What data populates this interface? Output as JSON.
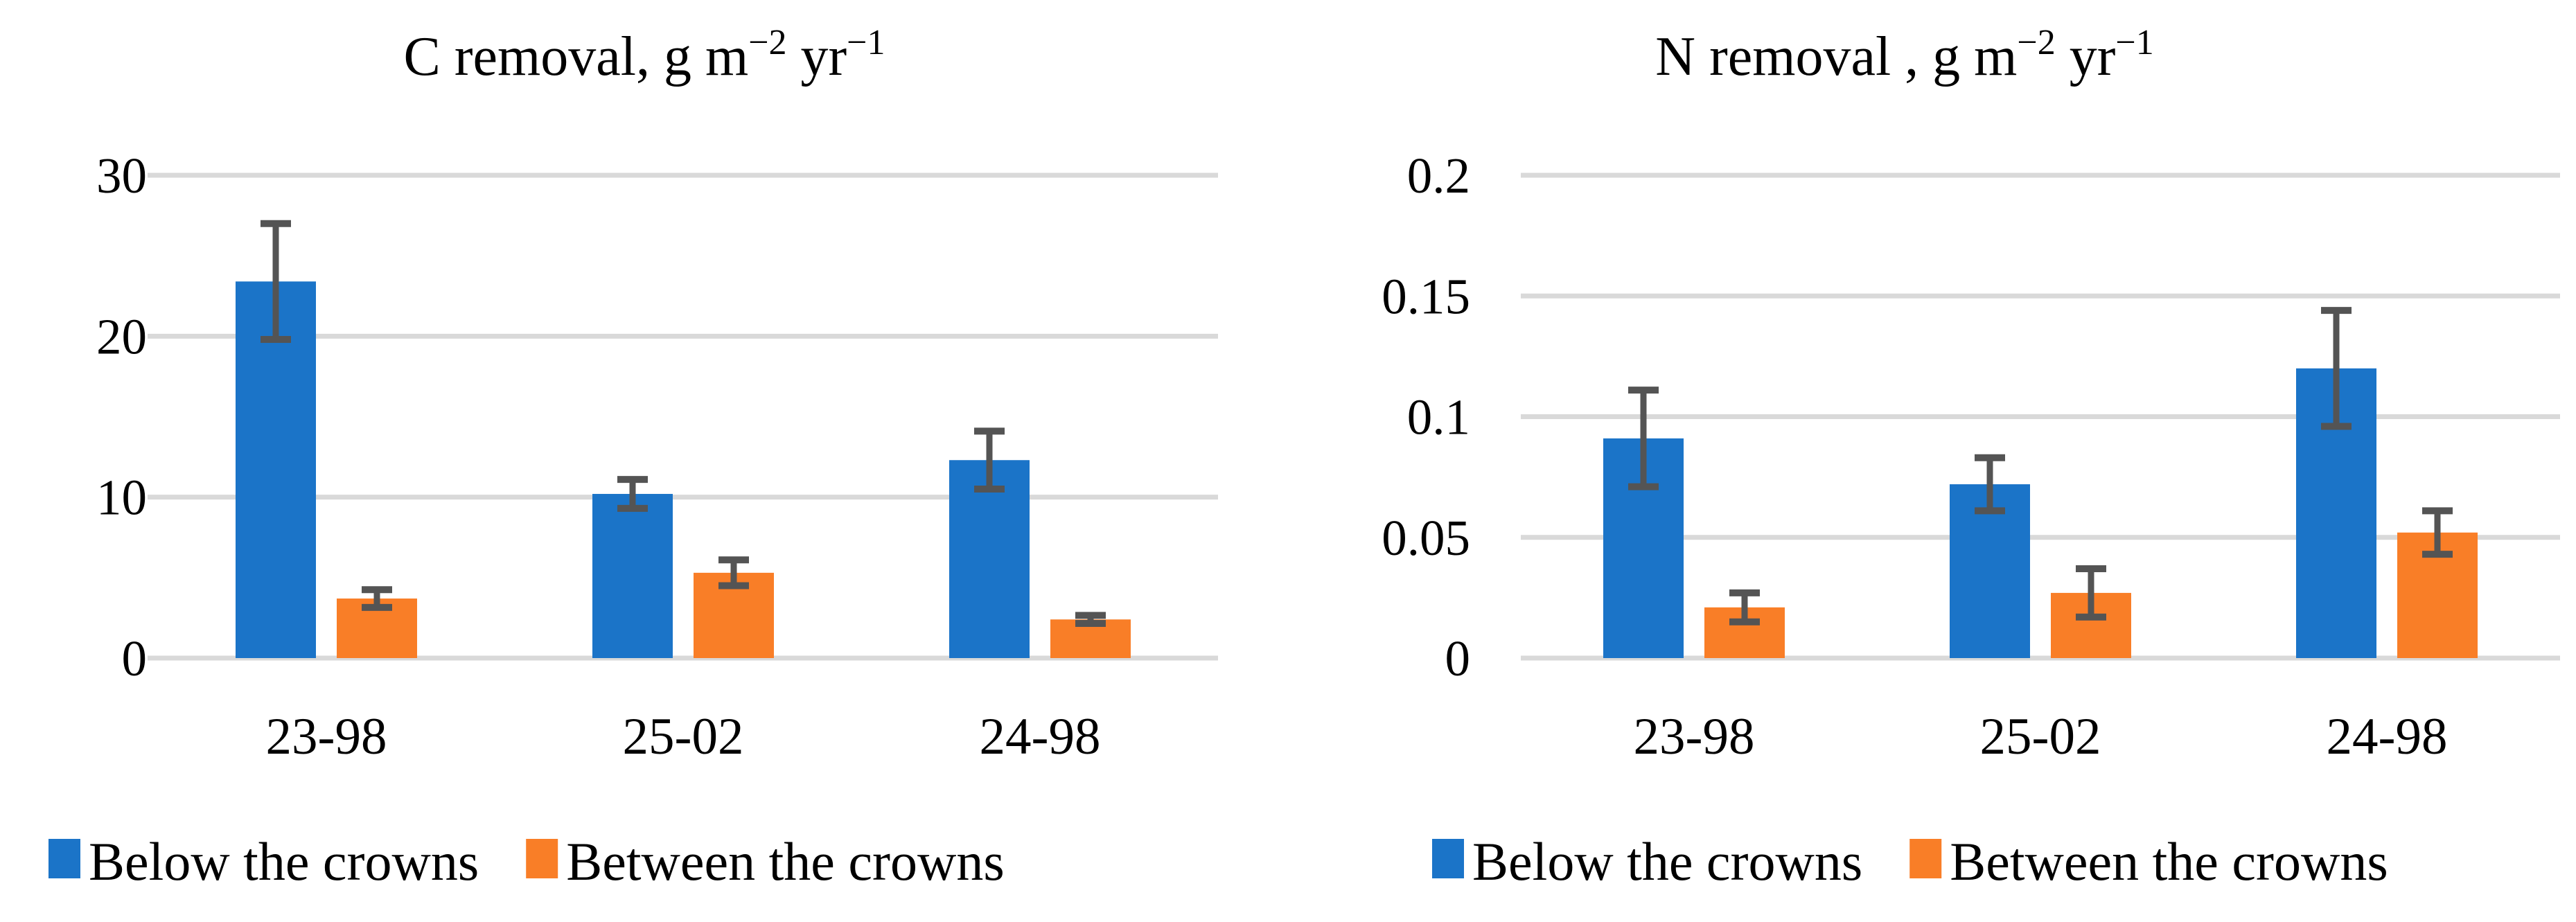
{
  "figure": {
    "background": "#ffffff",
    "series_colors": {
      "below": "#1B74C8",
      "between": "#F97E27"
    },
    "error_bar_color": "#545454",
    "gridline_color": "#D9D9D9",
    "text_color": "#000000",
    "legend": {
      "items": [
        {
          "label": "Below the crowns",
          "color_key": "below",
          "marker": "square"
        },
        {
          "label": "Between the crowns",
          "color_key": "between",
          "marker": "square"
        }
      ]
    }
  },
  "chart_data": [
    {
      "type": "bar",
      "title": "C removal, g m⁻² yr⁻¹",
      "title_parts": [
        {
          "t": "C removal, g m"
        },
        {
          "t": "−2",
          "sup": true
        },
        {
          "t": " yr"
        },
        {
          "t": "−1",
          "sup": true
        }
      ],
      "categories": [
        "23-98",
        "25-02",
        "24-98"
      ],
      "series": [
        {
          "name": "Below the crowns",
          "color_key": "below",
          "values": [
            23.4,
            10.2,
            12.3
          ],
          "errors": [
            3.6,
            0.9,
            1.8
          ]
        },
        {
          "name": "Between the crowns",
          "color_key": "between",
          "values": [
            3.7,
            5.3,
            2.4
          ],
          "errors": [
            0.55,
            0.8,
            0.25
          ]
        }
      ],
      "ylim": [
        0,
        30
      ],
      "yticks": [
        0,
        10,
        20,
        30
      ],
      "ytick_labels": [
        "0",
        "10",
        "20",
        "30"
      ],
      "grid": true,
      "legend_position": "bottom-left"
    },
    {
      "type": "bar",
      "title": "N removal , g m⁻² yr⁻¹",
      "title_parts": [
        {
          "t": "N removal , g m"
        },
        {
          "t": "−2",
          "sup": true
        },
        {
          "t": " yr"
        },
        {
          "t": "−1",
          "sup": true
        }
      ],
      "categories": [
        "23-98",
        "25-02",
        "24-98"
      ],
      "series": [
        {
          "name": "Below the crowns",
          "color_key": "below",
          "values": [
            0.091,
            0.072,
            0.12
          ],
          "errors": [
            0.02,
            0.011,
            0.024
          ]
        },
        {
          "name": "Between the crowns",
          "color_key": "between",
          "values": [
            0.021,
            0.027,
            0.052
          ],
          "errors": [
            0.006,
            0.01,
            0.009
          ]
        }
      ],
      "ylim": [
        0,
        0.2
      ],
      "yticks": [
        0,
        0.05,
        0.1,
        0.15,
        0.2
      ],
      "ytick_labels": [
        "0",
        "0.05",
        "0.1",
        "0.15",
        "0.2"
      ],
      "grid": true,
      "legend_position": "bottom-left"
    }
  ]
}
